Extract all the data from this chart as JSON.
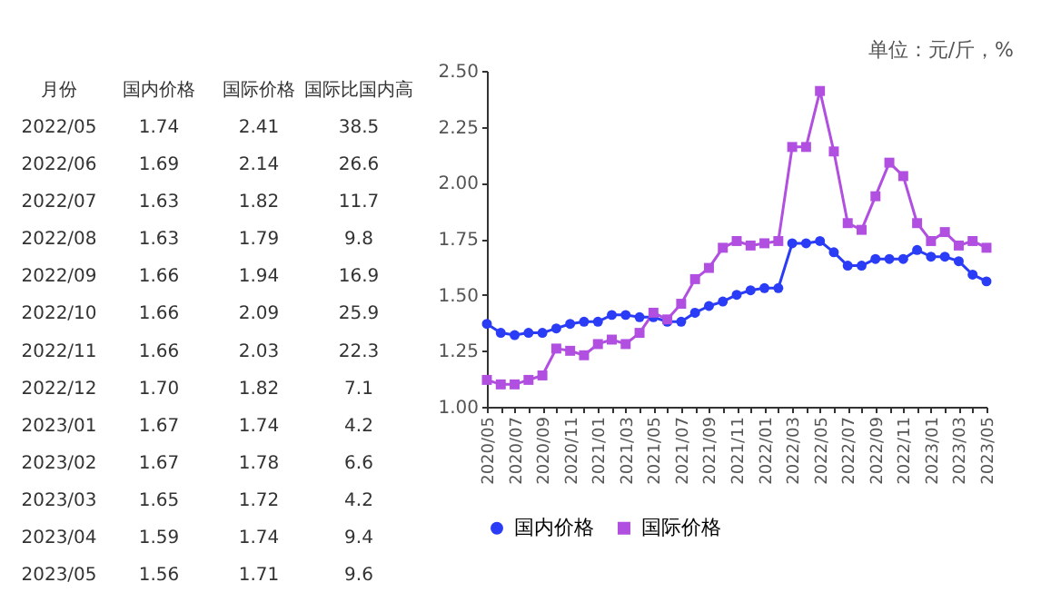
{
  "chart_data": [
    {
      "type": "other",
      "xlabel": "月份",
      "data_labels": true,
      "categories": [
        "2022/05",
        "2022/06",
        "2022/07",
        "2022/08",
        "2022/09",
        "2022/10",
        "2022/11",
        "2022/12",
        "2023/01",
        "2023/02",
        "2023/03",
        "2023/04",
        "2023/05"
      ],
      "series": [
        {
          "name": "国内价格",
          "values": [
            1.74,
            1.69,
            1.63,
            1.63,
            1.66,
            1.66,
            1.66,
            1.7,
            1.67,
            1.67,
            1.65,
            1.59,
            1.56
          ],
          "value_labels": [
            "1.74",
            "1.69",
            "1.63",
            "1.63",
            "1.66",
            "1.66",
            "1.66",
            "1.70",
            "1.67",
            "1.67",
            "1.65",
            "1.59",
            "1.56"
          ]
        },
        {
          "name": "国际价格",
          "values": [
            2.41,
            2.14,
            1.82,
            1.79,
            1.94,
            2.09,
            2.03,
            1.82,
            1.74,
            1.78,
            1.72,
            1.74,
            1.71
          ],
          "value_labels": [
            "2.41",
            "2.14",
            "1.82",
            "1.79",
            "1.94",
            "2.09",
            "2.03",
            "1.82",
            "1.74",
            "1.78",
            "1.72",
            "1.74",
            "1.71"
          ]
        },
        {
          "name": "国际比国内高",
          "values": [
            38.5,
            26.6,
            11.7,
            9.8,
            16.9,
            25.9,
            22.3,
            7.1,
            4.2,
            6.6,
            4.2,
            9.4,
            9.6
          ],
          "value_labels": [
            "38.5",
            "26.6",
            "11.7",
            "9.8",
            "16.9",
            "25.9",
            "22.3",
            "7.1",
            "4.2",
            "6.6",
            "4.2",
            "9.4",
            "9.6"
          ]
        }
      ]
    },
    {
      "type": "line",
      "annotations": [
        "单位：元/斤，%"
      ],
      "categories": [
        "2020/05",
        null,
        "2020/07",
        null,
        "2020/09",
        null,
        "2020/11",
        null,
        "2021/01",
        null,
        "2021/03",
        null,
        "2021/05",
        null,
        "2021/07",
        null,
        "2021/09",
        null,
        "2021/11",
        null,
        "2022/01",
        null,
        "2022/03",
        null,
        "2022/05",
        null,
        "2022/07",
        null,
        "2022/09",
        null,
        "2022/11",
        null,
        "2023/01",
        null,
        "2023/03",
        null,
        "2023/05"
      ],
      "ylim": [
        1.0,
        2.5
      ],
      "yticks": [
        {
          "value": 1.0,
          "label": "1.00"
        },
        {
          "value": 1.25,
          "label": "1.25"
        },
        {
          "value": 1.5,
          "label": "1.50"
        },
        {
          "value": 1.75,
          "label": "1.75"
        },
        {
          "value": 2.0,
          "label": "2.00"
        },
        {
          "value": 2.25,
          "label": "2.25"
        },
        {
          "value": 2.5,
          "label": "2.50"
        }
      ],
      "grid": false,
      "legend": "bottom",
      "line_style": "solid",
      "series": [
        {
          "name": "国内价格",
          "color": "#2a3cf5",
          "marker": "circle",
          "values": [
            1.37,
            1.33,
            1.32,
            1.33,
            1.33,
            1.35,
            1.37,
            1.38,
            1.38,
            1.41,
            1.41,
            1.4,
            1.4,
            1.38,
            1.38,
            1.42,
            1.45,
            1.47,
            1.5,
            1.52,
            1.53,
            1.53,
            1.73,
            1.73,
            1.74,
            1.69,
            1.63,
            1.63,
            1.66,
            1.66,
            1.66,
            1.7,
            1.67,
            1.67,
            1.65,
            1.59,
            1.56
          ]
        },
        {
          "name": "国际价格",
          "color": "#b04fe0",
          "marker": "square",
          "values": [
            1.12,
            1.1,
            1.1,
            1.12,
            1.14,
            1.26,
            1.25,
            1.23,
            1.28,
            1.3,
            1.28,
            1.33,
            1.42,
            1.39,
            1.46,
            1.57,
            1.62,
            1.71,
            1.74,
            1.72,
            1.73,
            1.74,
            2.16,
            2.16,
            2.41,
            2.14,
            1.82,
            1.79,
            1.94,
            2.09,
            2.03,
            1.82,
            1.74,
            1.78,
            1.72,
            1.74,
            1.71
          ]
        }
      ]
    }
  ]
}
